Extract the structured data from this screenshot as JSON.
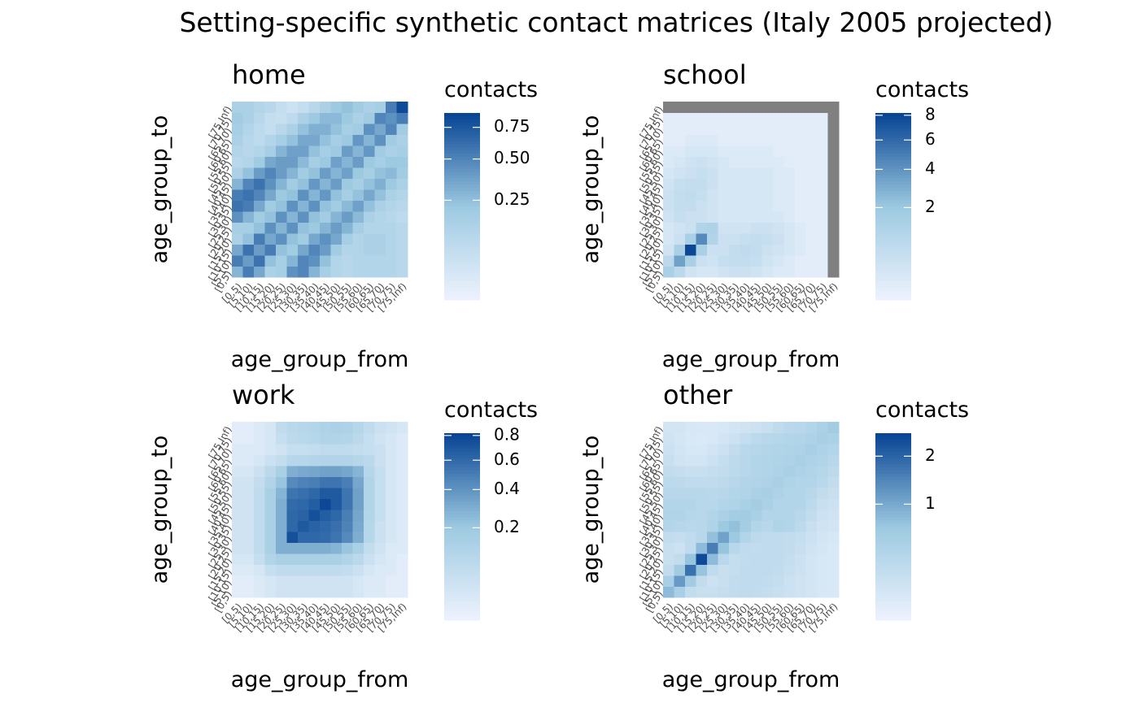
{
  "title": "Setting-specific synthetic contact matrices (Italy 2005 projected)",
  "age_groups": [
    "[0,5)",
    "[5,10)",
    "[10,15)",
    "[15,20)",
    "[20,25)",
    "[25,30)",
    "[30,35)",
    "[35,40)",
    "[40,45)",
    "[45,50)",
    "[50,55)",
    "[55,60)",
    "[60,65)",
    "[65,70)",
    "[70,75)",
    "[75,Inf)"
  ],
  "colors": {
    "low": "#eef3fe",
    "mid": "#9ecae1",
    "high": "#084594",
    "na": "#808080"
  },
  "chart_data": [
    {
      "type": "heatmap",
      "title": "home",
      "xlabel": "age_group_from",
      "ylabel": "age_group_to",
      "legend_title": "contacts",
      "legend_ticks": [
        0.25,
        0.5,
        0.75
      ],
      "legend_tick_labels": [
        "0.25",
        "0.50",
        "0.75"
      ],
      "value_range": [
        0.0,
        0.88
      ],
      "scale": "sqrt",
      "matrix": [
        [
          0.3,
          0.55,
          0.35,
          0.15,
          0.18,
          0.45,
          0.5,
          0.3,
          0.18,
          0.12,
          0.1,
          0.12,
          0.12,
          0.12,
          0.12,
          0.1
        ],
        [
          0.55,
          0.4,
          0.6,
          0.25,
          0.18,
          0.3,
          0.5,
          0.45,
          0.25,
          0.12,
          0.1,
          0.12,
          0.12,
          0.12,
          0.12,
          0.1
        ],
        [
          0.35,
          0.6,
          0.4,
          0.55,
          0.25,
          0.2,
          0.35,
          0.5,
          0.4,
          0.2,
          0.12,
          0.12,
          0.15,
          0.15,
          0.12,
          0.1
        ],
        [
          0.15,
          0.25,
          0.55,
          0.35,
          0.45,
          0.25,
          0.2,
          0.35,
          0.45,
          0.35,
          0.18,
          0.12,
          0.15,
          0.15,
          0.12,
          0.1
        ],
        [
          0.18,
          0.18,
          0.25,
          0.45,
          0.3,
          0.45,
          0.25,
          0.22,
          0.3,
          0.4,
          0.3,
          0.18,
          0.12,
          0.12,
          0.12,
          0.1
        ],
        [
          0.45,
          0.3,
          0.2,
          0.25,
          0.45,
          0.3,
          0.45,
          0.25,
          0.2,
          0.3,
          0.4,
          0.28,
          0.15,
          0.12,
          0.1,
          0.08
        ],
        [
          0.6,
          0.55,
          0.35,
          0.2,
          0.25,
          0.45,
          0.3,
          0.45,
          0.25,
          0.2,
          0.28,
          0.38,
          0.25,
          0.15,
          0.12,
          0.1
        ],
        [
          0.55,
          0.6,
          0.5,
          0.35,
          0.22,
          0.25,
          0.45,
          0.3,
          0.42,
          0.25,
          0.18,
          0.25,
          0.35,
          0.25,
          0.15,
          0.12
        ],
        [
          0.3,
          0.5,
          0.6,
          0.45,
          0.3,
          0.2,
          0.25,
          0.42,
          0.3,
          0.4,
          0.22,
          0.18,
          0.25,
          0.32,
          0.22,
          0.15
        ],
        [
          0.15,
          0.25,
          0.4,
          0.5,
          0.4,
          0.3,
          0.2,
          0.25,
          0.4,
          0.3,
          0.38,
          0.22,
          0.18,
          0.25,
          0.28,
          0.2
        ],
        [
          0.1,
          0.12,
          0.2,
          0.35,
          0.4,
          0.4,
          0.28,
          0.18,
          0.22,
          0.38,
          0.3,
          0.4,
          0.22,
          0.18,
          0.22,
          0.22
        ],
        [
          0.12,
          0.1,
          0.12,
          0.18,
          0.3,
          0.38,
          0.38,
          0.25,
          0.18,
          0.22,
          0.4,
          0.3,
          0.42,
          0.2,
          0.15,
          0.18
        ],
        [
          0.15,
          0.1,
          0.08,
          0.12,
          0.18,
          0.25,
          0.35,
          0.35,
          0.25,
          0.18,
          0.22,
          0.42,
          0.3,
          0.45,
          0.2,
          0.15
        ],
        [
          0.18,
          0.12,
          0.08,
          0.06,
          0.1,
          0.15,
          0.25,
          0.32,
          0.32,
          0.25,
          0.18,
          0.2,
          0.45,
          0.35,
          0.5,
          0.2
        ],
        [
          0.2,
          0.15,
          0.1,
          0.06,
          0.05,
          0.08,
          0.15,
          0.22,
          0.28,
          0.28,
          0.22,
          0.15,
          0.2,
          0.5,
          0.45,
          0.55
        ],
        [
          0.15,
          0.15,
          0.12,
          0.1,
          0.06,
          0.04,
          0.06,
          0.1,
          0.15,
          0.22,
          0.25,
          0.2,
          0.15,
          0.18,
          0.55,
          0.85
        ]
      ]
    },
    {
      "type": "heatmap",
      "title": "school",
      "xlabel": "age_group_from",
      "ylabel": "age_group_to",
      "legend_title": "contacts",
      "legend_ticks": [
        2,
        4,
        6,
        8
      ],
      "legend_tick_labels": [
        "2",
        "4",
        "6",
        "8"
      ],
      "value_range": [
        0.0,
        8.2
      ],
      "scale": "sqrt",
      "matrix": [
        [
          1.5,
          0.8,
          0.3,
          0.2,
          0.2,
          0.3,
          0.4,
          0.4,
          0.3,
          0.2,
          0.1,
          0.1,
          0.05,
          0.05,
          0.05,
          null
        ],
        [
          0.8,
          3.5,
          1.5,
          0.4,
          0.3,
          0.5,
          0.6,
          0.6,
          0.5,
          0.3,
          0.2,
          0.1,
          0.05,
          0.05,
          0.05,
          null
        ],
        [
          0.3,
          1.5,
          8.0,
          1.5,
          0.4,
          0.4,
          0.6,
          0.7,
          0.6,
          0.4,
          0.3,
          0.2,
          0.1,
          0.05,
          0.05,
          null
        ],
        [
          0.2,
          0.4,
          1.5,
          4.5,
          1.2,
          0.4,
          0.4,
          0.5,
          0.6,
          0.5,
          0.4,
          0.2,
          0.1,
          0.05,
          0.05,
          null
        ],
        [
          0.2,
          0.3,
          0.4,
          1.2,
          1.3,
          0.3,
          0.3,
          0.3,
          0.4,
          0.4,
          0.3,
          0.2,
          0.1,
          0.05,
          0.05,
          null
        ],
        [
          0.3,
          0.5,
          0.4,
          0.4,
          0.3,
          0.2,
          0.2,
          0.2,
          0.2,
          0.2,
          0.2,
          0.1,
          0.05,
          0.05,
          0.05,
          null
        ],
        [
          0.4,
          0.6,
          0.6,
          0.4,
          0.3,
          0.2,
          0.2,
          0.2,
          0.2,
          0.2,
          0.1,
          0.1,
          0.05,
          0.05,
          0.05,
          null
        ],
        [
          0.4,
          0.6,
          0.7,
          0.5,
          0.3,
          0.2,
          0.2,
          0.2,
          0.2,
          0.2,
          0.1,
          0.1,
          0.05,
          0.05,
          0.05,
          null
        ],
        [
          0.3,
          0.5,
          0.6,
          0.6,
          0.4,
          0.2,
          0.2,
          0.2,
          0.2,
          0.2,
          0.1,
          0.1,
          0.05,
          0.05,
          0.05,
          null
        ],
        [
          0.2,
          0.3,
          0.4,
          0.5,
          0.4,
          0.2,
          0.2,
          0.2,
          0.2,
          0.2,
          0.1,
          0.1,
          0.05,
          0.05,
          0.05,
          null
        ],
        [
          0.1,
          0.2,
          0.3,
          0.4,
          0.3,
          0.2,
          0.1,
          0.1,
          0.1,
          0.1,
          0.1,
          0.05,
          0.05,
          0.05,
          0.05,
          null
        ],
        [
          0.1,
          0.1,
          0.2,
          0.2,
          0.2,
          0.1,
          0.1,
          0.1,
          0.1,
          0.1,
          0.05,
          0.05,
          0.05,
          0.05,
          0.05,
          null
        ],
        [
          0.05,
          0.05,
          0.1,
          0.1,
          0.1,
          0.05,
          0.05,
          0.05,
          0.05,
          0.05,
          0.05,
          0.05,
          0.05,
          0.05,
          0.05,
          null
        ],
        [
          0.05,
          0.05,
          0.05,
          0.05,
          0.05,
          0.05,
          0.05,
          0.05,
          0.05,
          0.05,
          0.05,
          0.05,
          0.05,
          0.05,
          0.05,
          null
        ],
        [
          0.05,
          0.05,
          0.05,
          0.05,
          0.05,
          0.05,
          0.05,
          0.05,
          0.05,
          0.05,
          0.05,
          0.05,
          0.05,
          0.05,
          0.05,
          null
        ],
        [
          null,
          null,
          null,
          null,
          null,
          null,
          null,
          null,
          null,
          null,
          null,
          null,
          null,
          null,
          null,
          null
        ]
      ]
    },
    {
      "type": "heatmap",
      "title": "work",
      "xlabel": "age_group_from",
      "ylabel": "age_group_to",
      "legend_title": "contacts",
      "legend_ticks": [
        0.2,
        0.4,
        0.6,
        0.8
      ],
      "legend_tick_labels": [
        "0.2",
        "0.4",
        "0.6",
        "0.8"
      ],
      "value_range": [
        0.0,
        0.82
      ],
      "scale": "sqrt",
      "matrix": [
        [
          0.005,
          0.005,
          0.01,
          0.02,
          0.03,
          0.03,
          0.03,
          0.03,
          0.03,
          0.03,
          0.03,
          0.02,
          0.01,
          0.01,
          0.005,
          0.005
        ],
        [
          0.005,
          0.005,
          0.01,
          0.02,
          0.03,
          0.03,
          0.03,
          0.03,
          0.03,
          0.03,
          0.03,
          0.02,
          0.01,
          0.01,
          0.005,
          0.005
        ],
        [
          0.01,
          0.01,
          0.02,
          0.05,
          0.07,
          0.07,
          0.07,
          0.07,
          0.07,
          0.07,
          0.06,
          0.04,
          0.02,
          0.01,
          0.01,
          0.005
        ],
        [
          0.02,
          0.02,
          0.05,
          0.12,
          0.15,
          0.15,
          0.15,
          0.15,
          0.15,
          0.15,
          0.12,
          0.08,
          0.04,
          0.02,
          0.01,
          0.005
        ],
        [
          0.03,
          0.03,
          0.07,
          0.15,
          0.3,
          0.3,
          0.3,
          0.3,
          0.3,
          0.28,
          0.22,
          0.15,
          0.06,
          0.03,
          0.01,
          0.01
        ],
        [
          0.03,
          0.03,
          0.07,
          0.15,
          0.3,
          0.75,
          0.62,
          0.62,
          0.6,
          0.55,
          0.45,
          0.3,
          0.1,
          0.04,
          0.02,
          0.01
        ],
        [
          0.03,
          0.03,
          0.07,
          0.15,
          0.3,
          0.62,
          0.7,
          0.65,
          0.62,
          0.58,
          0.48,
          0.32,
          0.1,
          0.04,
          0.02,
          0.01
        ],
        [
          0.03,
          0.03,
          0.07,
          0.15,
          0.3,
          0.62,
          0.65,
          0.75,
          0.68,
          0.62,
          0.5,
          0.33,
          0.11,
          0.05,
          0.02,
          0.01
        ],
        [
          0.03,
          0.03,
          0.07,
          0.15,
          0.3,
          0.6,
          0.62,
          0.68,
          0.8,
          0.7,
          0.55,
          0.35,
          0.12,
          0.05,
          0.02,
          0.01
        ],
        [
          0.03,
          0.03,
          0.07,
          0.15,
          0.28,
          0.55,
          0.58,
          0.62,
          0.7,
          0.7,
          0.55,
          0.35,
          0.12,
          0.05,
          0.02,
          0.01
        ],
        [
          0.03,
          0.03,
          0.06,
          0.12,
          0.22,
          0.45,
          0.48,
          0.5,
          0.55,
          0.55,
          0.5,
          0.33,
          0.12,
          0.05,
          0.02,
          0.01
        ],
        [
          0.02,
          0.02,
          0.04,
          0.08,
          0.15,
          0.3,
          0.32,
          0.33,
          0.35,
          0.35,
          0.33,
          0.28,
          0.1,
          0.05,
          0.02,
          0.01
        ],
        [
          0.01,
          0.01,
          0.02,
          0.04,
          0.06,
          0.1,
          0.1,
          0.11,
          0.12,
          0.12,
          0.12,
          0.1,
          0.08,
          0.04,
          0.02,
          0.01
        ],
        [
          0.01,
          0.01,
          0.01,
          0.02,
          0.03,
          0.05,
          0.05,
          0.06,
          0.07,
          0.07,
          0.07,
          0.06,
          0.05,
          0.04,
          0.02,
          0.01
        ],
        [
          0.005,
          0.005,
          0.01,
          0.02,
          0.05,
          0.08,
          0.09,
          0.1,
          0.12,
          0.12,
          0.11,
          0.08,
          0.05,
          0.03,
          0.02,
          0.01
        ],
        [
          0.005,
          0.005,
          0.01,
          0.02,
          0.07,
          0.09,
          0.1,
          0.11,
          0.13,
          0.14,
          0.13,
          0.1,
          0.07,
          0.04,
          0.03,
          0.02
        ]
      ]
    },
    {
      "type": "heatmap",
      "title": "other",
      "xlabel": "age_group_from",
      "ylabel": "age_group_to",
      "legend_title": "contacts",
      "legend_ticks": [
        1,
        2
      ],
      "legend_tick_labels": [
        "1",
        "2"
      ],
      "value_range": [
        0.0,
        2.6
      ],
      "scale": "sqrt",
      "matrix": [
        [
          0.8,
          0.5,
          0.2,
          0.15,
          0.15,
          0.18,
          0.2,
          0.22,
          0.2,
          0.18,
          0.15,
          0.12,
          0.1,
          0.08,
          0.06,
          0.05
        ],
        [
          0.5,
          1.2,
          0.6,
          0.2,
          0.12,
          0.15,
          0.2,
          0.22,
          0.22,
          0.2,
          0.18,
          0.12,
          0.1,
          0.08,
          0.06,
          0.05
        ],
        [
          0.2,
          0.6,
          1.8,
          0.7,
          0.22,
          0.15,
          0.18,
          0.22,
          0.22,
          0.22,
          0.2,
          0.15,
          0.12,
          0.08,
          0.06,
          0.05
        ],
        [
          0.15,
          0.2,
          0.7,
          2.5,
          0.8,
          0.28,
          0.18,
          0.2,
          0.22,
          0.22,
          0.22,
          0.18,
          0.12,
          0.08,
          0.06,
          0.05
        ],
        [
          0.15,
          0.12,
          0.22,
          0.8,
          1.6,
          0.7,
          0.3,
          0.22,
          0.2,
          0.22,
          0.22,
          0.2,
          0.15,
          0.1,
          0.07,
          0.05
        ],
        [
          0.2,
          0.18,
          0.22,
          0.3,
          0.75,
          1.1,
          0.65,
          0.35,
          0.25,
          0.22,
          0.22,
          0.2,
          0.18,
          0.12,
          0.08,
          0.06
        ],
        [
          0.35,
          0.32,
          0.28,
          0.3,
          0.4,
          0.65,
          0.75,
          0.55,
          0.35,
          0.3,
          0.4,
          0.35,
          0.25,
          0.15,
          0.1,
          0.08
        ],
        [
          0.38,
          0.38,
          0.32,
          0.3,
          0.35,
          0.45,
          0.55,
          0.6,
          0.48,
          0.35,
          0.35,
          0.35,
          0.3,
          0.2,
          0.12,
          0.1
        ],
        [
          0.35,
          0.35,
          0.35,
          0.3,
          0.3,
          0.35,
          0.4,
          0.48,
          0.55,
          0.45,
          0.35,
          0.35,
          0.35,
          0.25,
          0.15,
          0.12
        ],
        [
          0.3,
          0.3,
          0.3,
          0.3,
          0.28,
          0.3,
          0.35,
          0.38,
          0.45,
          0.5,
          0.42,
          0.35,
          0.35,
          0.3,
          0.2,
          0.15
        ],
        [
          0.25,
          0.25,
          0.22,
          0.22,
          0.22,
          0.25,
          0.3,
          0.35,
          0.38,
          0.42,
          0.48,
          0.4,
          0.35,
          0.35,
          0.28,
          0.2
        ],
        [
          0.2,
          0.18,
          0.15,
          0.15,
          0.18,
          0.2,
          0.25,
          0.3,
          0.35,
          0.38,
          0.42,
          0.48,
          0.42,
          0.38,
          0.32,
          0.25
        ],
        [
          0.15,
          0.1,
          0.08,
          0.08,
          0.12,
          0.18,
          0.25,
          0.3,
          0.35,
          0.38,
          0.4,
          0.42,
          0.48,
          0.42,
          0.38,
          0.3
        ],
        [
          0.12,
          0.08,
          0.06,
          0.06,
          0.08,
          0.12,
          0.2,
          0.28,
          0.32,
          0.35,
          0.38,
          0.4,
          0.42,
          0.5,
          0.42,
          0.35
        ],
        [
          0.1,
          0.07,
          0.05,
          0.04,
          0.05,
          0.08,
          0.12,
          0.18,
          0.25,
          0.3,
          0.32,
          0.35,
          0.38,
          0.42,
          0.5,
          0.45
        ],
        [
          0.08,
          0.08,
          0.06,
          0.05,
          0.05,
          0.06,
          0.08,
          0.1,
          0.12,
          0.15,
          0.22,
          0.28,
          0.3,
          0.35,
          0.45,
          0.6
        ]
      ]
    }
  ]
}
